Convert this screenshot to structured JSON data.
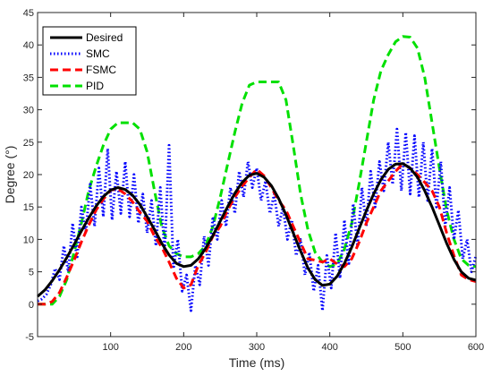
{
  "chart_data": {
    "type": "line",
    "xlabel": "Time (ms)",
    "ylabel": "Degree (°)",
    "xlim": [
      0,
      600
    ],
    "ylim": [
      -5,
      45
    ],
    "xticks": [
      "100",
      "200",
      "300",
      "400",
      "500",
      "600"
    ],
    "yticks": [
      "-5",
      "0",
      "5",
      "10",
      "15",
      "20",
      "25",
      "30",
      "35",
      "40",
      "45"
    ],
    "grid": false,
    "legend_position": "top-left",
    "series": [
      {
        "name": "Desired",
        "color": "#000000",
        "style": "solid",
        "x": [
          0,
          10,
          20,
          30,
          40,
          50,
          60,
          70,
          80,
          90,
          100,
          110,
          120,
          130,
          140,
          150,
          160,
          170,
          180,
          190,
          200,
          210,
          220,
          230,
          240,
          250,
          260,
          270,
          280,
          290,
          300,
          310,
          320,
          330,
          340,
          350,
          360,
          370,
          380,
          390,
          400,
          410,
          420,
          430,
          440,
          450,
          460,
          470,
          480,
          490,
          500,
          510,
          520,
          530,
          540,
          550,
          560,
          570,
          580,
          590,
          600
        ],
        "y": [
          1.2,
          2.2,
          3.6,
          5.3,
          7.2,
          9.2,
          11.3,
          13.3,
          15.1,
          16.6,
          17.6,
          18.0,
          17.7,
          16.8,
          15.4,
          13.5,
          11.5,
          9.4,
          7.6,
          6.3,
          5.8,
          6.0,
          7.0,
          8.6,
          10.6,
          12.8,
          15.0,
          17.1,
          18.8,
          19.9,
          20.2,
          19.6,
          18.3,
          16.3,
          13.8,
          11.0,
          8.2,
          5.6,
          3.8,
          2.9,
          3.1,
          4.3,
          6.3,
          8.8,
          11.6,
          14.4,
          17.0,
          19.2,
          20.8,
          21.6,
          21.7,
          21.0,
          19.6,
          17.5,
          15.0,
          12.2,
          9.4,
          6.9,
          5.0,
          4.0,
          3.7
        ]
      },
      {
        "name": "SMC",
        "color": "#0000ff",
        "style": "dotted",
        "x": [
          0,
          6,
          12,
          18,
          24,
          30,
          36,
          42,
          48,
          54,
          60,
          66,
          72,
          78,
          84,
          90,
          96,
          102,
          108,
          114,
          120,
          126,
          132,
          138,
          144,
          150,
          156,
          162,
          168,
          174,
          180,
          186,
          192,
          198,
          204,
          210,
          216,
          222,
          228,
          234,
          240,
          246,
          252,
          258,
          264,
          270,
          276,
          282,
          288,
          294,
          300,
          306,
          312,
          318,
          324,
          330,
          336,
          342,
          348,
          354,
          360,
          366,
          372,
          378,
          384,
          390,
          396,
          402,
          408,
          414,
          420,
          426,
          432,
          438,
          444,
          450,
          456,
          462,
          468,
          474,
          480,
          486,
          492,
          498,
          504,
          510,
          516,
          522,
          528,
          534,
          540,
          546,
          552,
          558,
          564,
          570,
          576,
          582,
          588,
          594,
          600
        ],
        "y": [
          0.5,
          0.8,
          1.5,
          3.0,
          5.5,
          3.8,
          9.0,
          5.0,
          12.5,
          7.0,
          15.0,
          11.0,
          18.5,
          12.0,
          21.0,
          13.5,
          24.0,
          13.0,
          20.5,
          14.0,
          22.0,
          13.5,
          20.0,
          12.5,
          17.0,
          11.0,
          16.0,
          9.0,
          18.0,
          8.0,
          24.5,
          5.5,
          10.0,
          2.0,
          4.5,
          -1.0,
          6.0,
          3.0,
          10.5,
          6.0,
          13.5,
          10.0,
          16.0,
          12.0,
          18.0,
          14.0,
          20.5,
          16.5,
          22.0,
          18.0,
          21.0,
          16.0,
          19.0,
          14.0,
          17.0,
          12.0,
          15.0,
          10.0,
          13.0,
          7.5,
          10.0,
          4.5,
          8.0,
          2.0,
          6.0,
          -1.0,
          7.5,
          2.5,
          11.0,
          4.0,
          13.0,
          6.0,
          15.5,
          9.0,
          18.0,
          12.0,
          20.5,
          15.0,
          22.0,
          17.5,
          25.0,
          18.5,
          27.0,
          17.5,
          26.5,
          17.0,
          26.0,
          16.5,
          25.0,
          16.0,
          24.0,
          15.0,
          22.0,
          12.0,
          18.0,
          10.0,
          14.5,
          7.0,
          10.0,
          5.0,
          7.5
        ]
      },
      {
        "name": "FSMC",
        "color": "#ff0000",
        "style": "dashed",
        "x": [
          0,
          10,
          20,
          30,
          40,
          50,
          60,
          70,
          80,
          90,
          100,
          110,
          120,
          130,
          140,
          150,
          160,
          170,
          180,
          190,
          200,
          210,
          220,
          230,
          240,
          250,
          260,
          270,
          280,
          290,
          300,
          310,
          320,
          330,
          340,
          350,
          360,
          370,
          380,
          390,
          400,
          410,
          420,
          430,
          440,
          450,
          460,
          470,
          480,
          490,
          500,
          510,
          520,
          530,
          540,
          550,
          560,
          570,
          580,
          590,
          600
        ],
        "y": [
          0.0,
          0.0,
          0.4,
          1.8,
          4.2,
          6.8,
          9.6,
          12.2,
          14.5,
          16.2,
          17.6,
          17.8,
          17.0,
          15.8,
          14.2,
          12.8,
          10.5,
          8.8,
          6.5,
          4.0,
          2.5,
          3.0,
          6.0,
          8.0,
          10.5,
          12.0,
          14.5,
          16.5,
          18.2,
          19.6,
          20.8,
          19.8,
          18.0,
          16.0,
          14.5,
          12.0,
          9.5,
          7.0,
          6.8,
          6.5,
          7.0,
          6.2,
          5.8,
          7.0,
          9.5,
          12.5,
          15.0,
          17.5,
          19.0,
          20.5,
          21.7,
          21.0,
          20.0,
          18.8,
          17.5,
          15.0,
          11.0,
          7.5,
          4.5,
          3.8,
          3.5
        ]
      },
      {
        "name": "PID",
        "color": "#00e000",
        "style": "dashed",
        "x": [
          0,
          10,
          20,
          30,
          40,
          50,
          60,
          70,
          80,
          90,
          100,
          110,
          120,
          130,
          140,
          150,
          160,
          170,
          180,
          190,
          200,
          210,
          220,
          230,
          240,
          250,
          260,
          270,
          280,
          290,
          300,
          310,
          320,
          330,
          340,
          350,
          360,
          370,
          380,
          390,
          400,
          410,
          420,
          430,
          440,
          450,
          460,
          470,
          480,
          490,
          500,
          510,
          520,
          530,
          540,
          550,
          560,
          570,
          580,
          590,
          600
        ],
        "y": [
          0.0,
          0.0,
          0.0,
          1.2,
          3.8,
          8.0,
          12.5,
          17.5,
          21.2,
          24.5,
          27.0,
          28.0,
          28.0,
          28.0,
          27.0,
          23.5,
          17.5,
          12.0,
          9.0,
          7.8,
          7.3,
          7.3,
          7.8,
          9.0,
          12.0,
          16.5,
          21.5,
          26.5,
          31.0,
          33.8,
          34.3,
          34.3,
          34.3,
          34.3,
          31.5,
          24.5,
          17.0,
          11.5,
          8.0,
          6.5,
          5.8,
          6.2,
          8.5,
          12.5,
          18.5,
          25.0,
          31.5,
          36.0,
          38.5,
          40.5,
          41.3,
          41.2,
          39.5,
          35.0,
          28.0,
          21.0,
          14.5,
          10.0,
          7.0,
          6.0,
          5.8
        ]
      }
    ]
  }
}
